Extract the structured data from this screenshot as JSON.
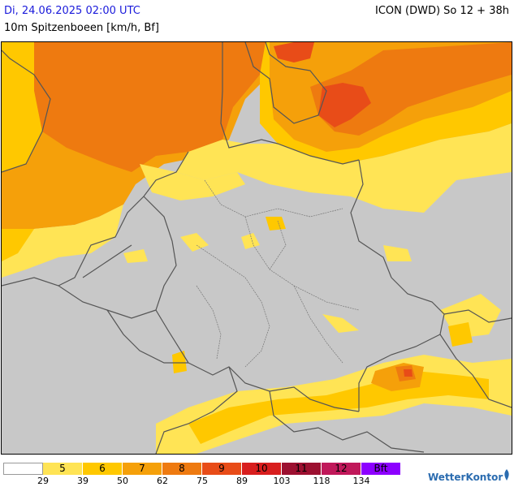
{
  "header": {
    "datetime": "Di, 24.06.2025 02:00 UTC",
    "model": "ICON (DWD) So 12 + 38h",
    "parameter": "10m Spitzenboeen [km/h, Bf]"
  },
  "legend": {
    "bins": [
      {
        "bf": "",
        "color": "#ffffff"
      },
      {
        "bf": "5",
        "color": "#ffe455"
      },
      {
        "bf": "6",
        "color": "#ffc800"
      },
      {
        "bf": "7",
        "color": "#f5a00a"
      },
      {
        "bf": "8",
        "color": "#ee7a10"
      },
      {
        "bf": "9",
        "color": "#e84c18"
      },
      {
        "bf": "10",
        "color": "#d81e1e"
      },
      {
        "bf": "11",
        "color": "#9c1030"
      },
      {
        "bf": "12",
        "color": "#c0185a"
      },
      {
        "bf": "Bft",
        "color": "#8c00ff"
      }
    ],
    "thresholds_kmh": [
      "29",
      "39",
      "50",
      "62",
      "75",
      "89",
      "103",
      "118",
      "134"
    ]
  },
  "map": {
    "background_color": "#c8c8c8",
    "border_color": "#555555",
    "legend_scale": "Bft"
  },
  "logo": {
    "text": "WetterKontor"
  }
}
